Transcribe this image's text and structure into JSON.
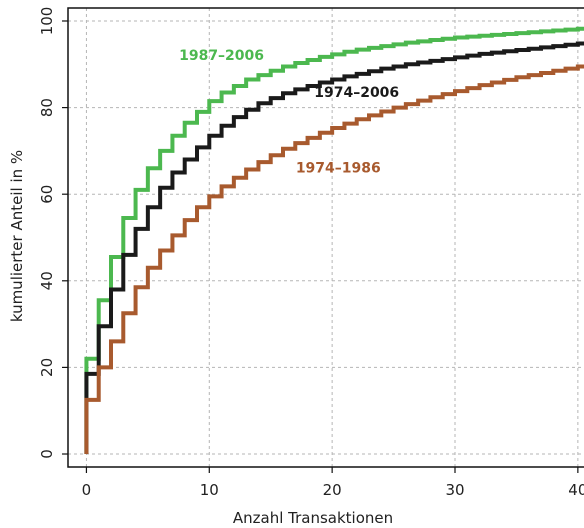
{
  "chart_data": {
    "type": "line",
    "step": true,
    "title": "",
    "xlabel": "Anzahl Transaktionen",
    "ylabel": "kumulierter Anteil in %",
    "xlim": [
      -1.5,
      40.5
    ],
    "ylim": [
      -3,
      103
    ],
    "xticks": [
      0,
      10,
      20,
      30,
      40
    ],
    "yticks": [
      0,
      20,
      40,
      60,
      80,
      100
    ],
    "xtick_labels": [
      "0",
      "10",
      "20",
      "30",
      "40"
    ],
    "ytick_labels": [
      "0",
      "20",
      "40",
      "60",
      "80",
      "100"
    ],
    "grid": true,
    "series": [
      {
        "name": "1987–2006",
        "color": "#4cb84f",
        "x": [
          0,
          1,
          2,
          3,
          4,
          5,
          6,
          7,
          8,
          9,
          10,
          11,
          12,
          13,
          14,
          15,
          16,
          17,
          18,
          19,
          20,
          21,
          22,
          23,
          24,
          25,
          26,
          27,
          28,
          29,
          30,
          31,
          32,
          33,
          34,
          35,
          36,
          37,
          38,
          39,
          40
        ],
        "y": [
          22,
          35.5,
          45.5,
          54.5,
          61,
          66,
          70,
          73.5,
          76.5,
          79,
          81.5,
          83.5,
          85,
          86.5,
          87.5,
          88.5,
          89.5,
          90.3,
          91,
          91.7,
          92.3,
          92.9,
          93.4,
          93.8,
          94.2,
          94.6,
          95,
          95.3,
          95.6,
          95.9,
          96.2,
          96.4,
          96.6,
          96.8,
          97,
          97.2,
          97.4,
          97.6,
          97.8,
          98,
          98.2
        ]
      },
      {
        "name": "1974–2006",
        "color": "#1a1a1a",
        "x": [
          0,
          1,
          2,
          3,
          4,
          5,
          6,
          7,
          8,
          9,
          10,
          11,
          12,
          13,
          14,
          15,
          16,
          17,
          18,
          19,
          20,
          21,
          22,
          23,
          24,
          25,
          26,
          27,
          28,
          29,
          30,
          31,
          32,
          33,
          34,
          35,
          36,
          37,
          38,
          39,
          40
        ],
        "y": [
          18.5,
          29.5,
          38,
          46,
          52,
          57,
          61.5,
          65,
          68,
          70.8,
          73.5,
          75.8,
          77.8,
          79.5,
          81,
          82.2,
          83.3,
          84.2,
          85,
          85.8,
          86.5,
          87.2,
          87.8,
          88.4,
          89,
          89.5,
          90,
          90.4,
          90.8,
          91.2,
          91.6,
          92,
          92.4,
          92.7,
          93,
          93.3,
          93.6,
          93.9,
          94.2,
          94.5,
          94.8
        ]
      },
      {
        "name": "1974–1986",
        "color": "#a85a2e",
        "x": [
          0,
          1,
          2,
          3,
          4,
          5,
          6,
          7,
          8,
          9,
          10,
          11,
          12,
          13,
          14,
          15,
          16,
          17,
          18,
          19,
          20,
          21,
          22,
          23,
          24,
          25,
          26,
          27,
          28,
          29,
          30,
          31,
          32,
          33,
          34,
          35,
          36,
          37,
          38,
          39,
          40
        ],
        "y": [
          12.5,
          20,
          26,
          32.5,
          38.5,
          43,
          47,
          50.5,
          54,
          57,
          59.5,
          61.8,
          63.8,
          65.7,
          67.4,
          69,
          70.5,
          71.8,
          73,
          74.2,
          75.3,
          76.3,
          77.3,
          78.2,
          79.1,
          80,
          80.8,
          81.6,
          82.4,
          83.1,
          83.8,
          84.5,
          85.2,
          85.8,
          86.4,
          87,
          87.5,
          88,
          88.5,
          89,
          89.5
        ]
      }
    ],
    "annotations": [
      {
        "text": "1987–2006",
        "x": 11,
        "y": 91,
        "series": 0
      },
      {
        "text": "1974–2006",
        "x": 22,
        "y": 82.5,
        "series": 1
      },
      {
        "text": "1974–1986",
        "x": 20.5,
        "y": 65,
        "series": 2
      }
    ]
  }
}
